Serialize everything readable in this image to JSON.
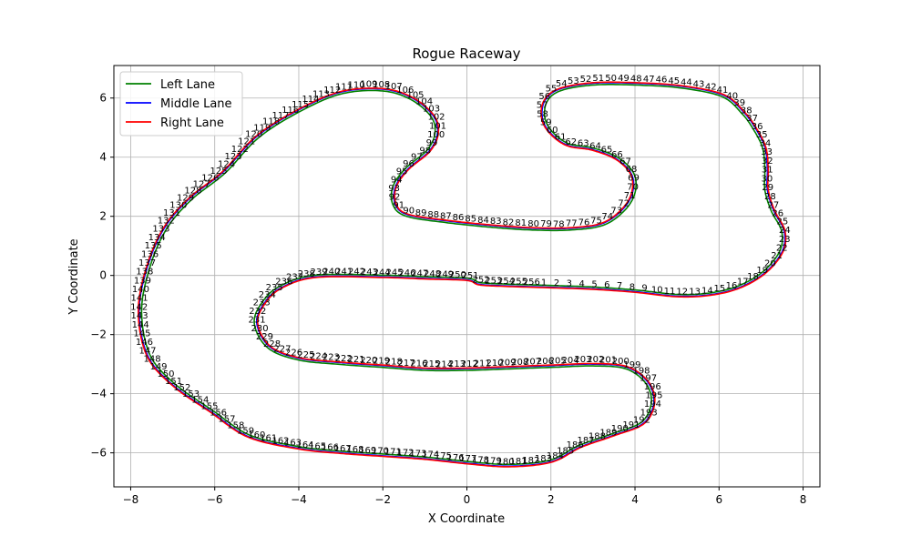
{
  "chart_data": {
    "type": "line",
    "title": "Rogue Raceway",
    "xlabel": "X Coordinate",
    "ylabel": "Y Coordinate",
    "xlim": [
      -8.4,
      8.4
    ],
    "ylim": [
      -7.15,
      7.1
    ],
    "xticks": [
      -8,
      -6,
      -4,
      -2,
      0,
      2,
      4,
      6,
      8
    ],
    "yticks": [
      -6,
      -4,
      -2,
      0,
      2,
      4,
      6
    ],
    "grid": true,
    "legend": "upper-left",
    "series": [
      {
        "name": "Left Lane",
        "color": "#008000"
      },
      {
        "name": "Middle Lane",
        "color": "#0000ff"
      },
      {
        "name": "Right Lane",
        "color": "#ff0000"
      }
    ],
    "centerline": [
      [
        0.3,
        -0.3
      ],
      [
        0.9,
        -0.35
      ],
      [
        2.0,
        -0.4
      ],
      [
        3.0,
        -0.45
      ],
      [
        4.0,
        -0.55
      ],
      [
        5.0,
        -0.7
      ],
      [
        5.8,
        -0.65
      ],
      [
        6.5,
        -0.4
      ],
      [
        7.1,
        0.1
      ],
      [
        7.5,
        0.8
      ],
      [
        7.55,
        1.5
      ],
      [
        7.3,
        2.2
      ],
      [
        7.15,
        2.9
      ],
      [
        7.15,
        3.6
      ],
      [
        7.1,
        4.3
      ],
      [
        6.9,
        4.9
      ],
      [
        6.6,
        5.5
      ],
      [
        6.1,
        6.1
      ],
      [
        5.1,
        6.4
      ],
      [
        4.0,
        6.5
      ],
      [
        3.0,
        6.5
      ],
      [
        2.2,
        6.3
      ],
      [
        1.85,
        5.9
      ],
      [
        1.8,
        5.3
      ],
      [
        2.0,
        4.8
      ],
      [
        2.4,
        4.4
      ],
      [
        3.0,
        4.25
      ],
      [
        3.6,
        3.9
      ],
      [
        3.95,
        3.3
      ],
      [
        3.85,
        2.5
      ],
      [
        3.3,
        1.8
      ],
      [
        2.5,
        1.6
      ],
      [
        1.5,
        1.6
      ],
      [
        0.5,
        1.7
      ],
      [
        -0.5,
        1.85
      ],
      [
        -1.4,
        2.05
      ],
      [
        -1.7,
        2.4
      ],
      [
        -1.7,
        3.0
      ],
      [
        -1.4,
        3.6
      ],
      [
        -0.9,
        4.2
      ],
      [
        -0.7,
        4.8
      ],
      [
        -0.8,
        5.4
      ],
      [
        -1.3,
        6.0
      ],
      [
        -2.0,
        6.3
      ],
      [
        -3.0,
        6.2
      ],
      [
        -4.0,
        5.6
      ],
      [
        -5.0,
        4.7
      ],
      [
        -5.8,
        3.5
      ],
      [
        -6.6,
        2.6
      ],
      [
        -7.2,
        1.6
      ],
      [
        -7.6,
        0.3
      ],
      [
        -7.8,
        -1.2
      ],
      [
        -7.6,
        -2.7
      ],
      [
        -7.0,
        -3.7
      ],
      [
        -6.1,
        -4.6
      ],
      [
        -5.2,
        -5.45
      ],
      [
        -4.0,
        -5.85
      ],
      [
        -3.0,
        -6.0
      ],
      [
        -2.0,
        -6.1
      ],
      [
        -1.0,
        -6.2
      ],
      [
        0.0,
        -6.35
      ],
      [
        1.0,
        -6.45
      ],
      [
        2.0,
        -6.3
      ],
      [
        2.7,
        -5.8
      ],
      [
        3.5,
        -5.4
      ],
      [
        4.2,
        -5.0
      ],
      [
        4.45,
        -4.3
      ],
      [
        4.3,
        -3.6
      ],
      [
        3.8,
        -3.1
      ],
      [
        3.0,
        -3.0
      ],
      [
        2.0,
        -3.05
      ],
      [
        1.0,
        -3.1
      ],
      [
        0.0,
        -3.15
      ],
      [
        -1.0,
        -3.15
      ],
      [
        -2.0,
        -3.05
      ],
      [
        -3.0,
        -2.95
      ],
      [
        -4.0,
        -2.8
      ],
      [
        -4.7,
        -2.4
      ],
      [
        -5.0,
        -1.6
      ],
      [
        -4.8,
        -0.9
      ],
      [
        -4.4,
        -0.4
      ],
      [
        -3.6,
        -0.05
      ],
      [
        -2.0,
        -0.05
      ],
      [
        -1.0,
        -0.1
      ],
      [
        0.0,
        -0.15
      ],
      [
        0.3,
        -0.3
      ]
    ],
    "waypoints": [
      "1",
      "2",
      "3",
      "4",
      "5",
      "6",
      "7",
      "8",
      "9",
      "10",
      "11",
      "12",
      "13",
      "14",
      "15",
      "16",
      "17",
      "18",
      "19",
      "20",
      "21",
      "22",
      "23",
      "24",
      "25",
      "26",
      "27",
      "28",
      "29",
      "30",
      "31",
      "32",
      "33",
      "34",
      "35",
      "36",
      "37",
      "38",
      "39",
      "40",
      "41",
      "42",
      "43",
      "44",
      "45",
      "46",
      "47",
      "48",
      "49",
      "50",
      "51",
      "52",
      "53",
      "54",
      "55",
      "56",
      "57",
      "58",
      "59",
      "60",
      "61",
      "62",
      "63",
      "64",
      "65",
      "66",
      "67",
      "68",
      "69",
      "70",
      "71",
      "72",
      "73",
      "74",
      "75",
      "76",
      "77",
      "78",
      "79",
      "80",
      "81",
      "82",
      "83",
      "84",
      "85",
      "86",
      "87",
      "88",
      "89",
      "90",
      "91",
      "92",
      "93",
      "94",
      "95",
      "96",
      "97",
      "98",
      "99",
      "100",
      "101",
      "102",
      "103",
      "104",
      "105",
      "106",
      "107",
      "108",
      "109",
      "110",
      "111",
      "112",
      "113",
      "114",
      "115",
      "116",
      "117",
      "118",
      "119",
      "120",
      "121",
      "122",
      "123",
      "124",
      "125",
      "126",
      "127",
      "128",
      "129",
      "130",
      "131",
      "132",
      "133",
      "134",
      "135",
      "136",
      "137",
      "138",
      "139",
      "140",
      "141",
      "142",
      "143",
      "144",
      "145",
      "146",
      "147",
      "148",
      "149",
      "150",
      "151",
      "152",
      "153",
      "154",
      "155",
      "156",
      "157",
      "158",
      "159",
      "160",
      "161",
      "162",
      "163",
      "164",
      "165",
      "166",
      "167",
      "168",
      "169",
      "170",
      "171",
      "172",
      "173",
      "174",
      "175",
      "176",
      "177",
      "178",
      "179",
      "180",
      "181",
      "182",
      "183",
      "184",
      "185",
      "186",
      "187",
      "188",
      "189",
      "190",
      "191",
      "192",
      "193",
      "194",
      "195",
      "196",
      "197",
      "198",
      "199",
      "200",
      "201",
      "202",
      "203",
      "204",
      "205",
      "206",
      "207",
      "208",
      "209",
      "210",
      "211",
      "212",
      "213",
      "214",
      "215",
      "216",
      "217",
      "218",
      "219",
      "220",
      "221",
      "222",
      "223",
      "224",
      "225",
      "226",
      "227",
      "228",
      "229",
      "230",
      "231",
      "232",
      "233",
      "234",
      "235",
      "236",
      "237",
      "238",
      "239",
      "240",
      "241",
      "242",
      "243",
      "244",
      "245",
      "246",
      "247",
      "248",
      "249",
      "250",
      "251",
      "252",
      "253",
      "254",
      "255",
      "256"
    ]
  }
}
